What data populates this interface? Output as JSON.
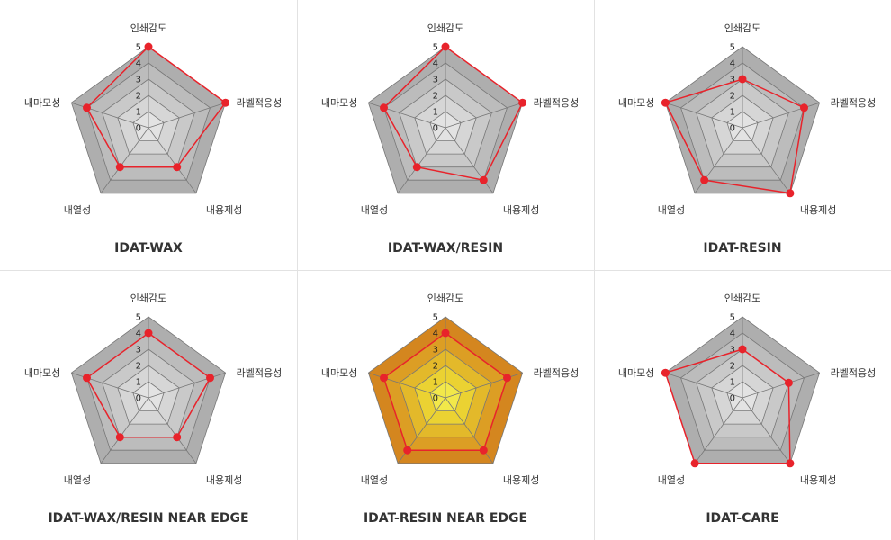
{
  "colors": {
    "gray_levels": [
      "#aeaeae",
      "#bcbcbc",
      "#c9c9c9",
      "#d6d6d6",
      "#e3e3e3"
    ],
    "gold_levels": [
      "#d4861f",
      "#dc9e24",
      "#e3b92a",
      "#ebd232",
      "#f2e84a"
    ],
    "grid_line": "#777777",
    "series_line": "#e8232b",
    "series_point": "#e8232b"
  },
  "chart_data": [
    {
      "type": "radar",
      "title": "IDAT-WAX",
      "axes": [
        "인쇄감도",
        "라벨적응성",
        "내용제성",
        "내열성",
        "내마모성"
      ],
      "ticks": [
        "0",
        "1",
        "2",
        "3",
        "4",
        "5"
      ],
      "rlim": [
        0,
        5
      ],
      "values": [
        5,
        5,
        3,
        3,
        4
      ],
      "theme": "gray"
    },
    {
      "type": "radar",
      "title": "IDAT-WAX/RESIN",
      "axes": [
        "인쇄감도",
        "라벨적응성",
        "내용제성",
        "내열성",
        "내마모성"
      ],
      "ticks": [
        "0",
        "1",
        "2",
        "3",
        "4",
        "5"
      ],
      "rlim": [
        0,
        5
      ],
      "values": [
        5,
        5,
        4,
        3,
        4
      ],
      "theme": "gray"
    },
    {
      "type": "radar",
      "title": "IDAT-RESIN",
      "axes": [
        "인쇄감도",
        "라벨적응성",
        "내용제성",
        "내열성",
        "내마모성"
      ],
      "ticks": [
        "0",
        "1",
        "2",
        "3",
        "4",
        "5"
      ],
      "rlim": [
        0,
        5
      ],
      "values": [
        3,
        4,
        5,
        4,
        5
      ],
      "theme": "gray"
    },
    {
      "type": "radar",
      "title": "IDAT-WAX/RESIN NEAR EDGE",
      "axes": [
        "인쇄감도",
        "라벨적응성",
        "내용제성",
        "내열성",
        "내마모성"
      ],
      "ticks": [
        "0",
        "1",
        "2",
        "3",
        "4",
        "5"
      ],
      "rlim": [
        0,
        5
      ],
      "values": [
        4,
        4,
        3,
        3,
        4
      ],
      "theme": "gray"
    },
    {
      "type": "radar",
      "title": "IDAT-RESIN NEAR EDGE",
      "axes": [
        "인쇄감도",
        "라벨적응성",
        "내용제성",
        "내열성",
        "내마모성"
      ],
      "ticks": [
        "0",
        "1",
        "2",
        "3",
        "4",
        "5"
      ],
      "rlim": [
        0,
        5
      ],
      "values": [
        4,
        4,
        4,
        4,
        4
      ],
      "theme": "gold"
    },
    {
      "type": "radar",
      "title": "IDAT-CARE",
      "axes": [
        "인쇄감도",
        "라벨적응성",
        "내용제성",
        "내열성",
        "내마모성"
      ],
      "ticks": [
        "0",
        "1",
        "2",
        "3",
        "4",
        "5"
      ],
      "rlim": [
        0,
        5
      ],
      "values": [
        3,
        3,
        5,
        5,
        5
      ],
      "theme": "gray"
    }
  ]
}
